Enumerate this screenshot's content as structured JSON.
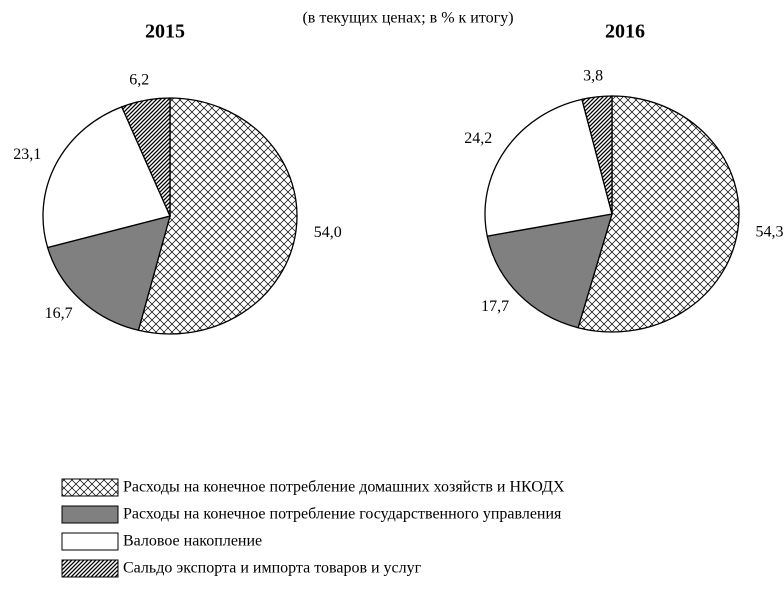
{
  "chart_data": [
    {
      "type": "pie",
      "title": "2015",
      "values": [
        54.0,
        16.7,
        23.1,
        6.2
      ],
      "value_labels": [
        "54,0",
        "16,7",
        "23,1",
        "6,2"
      ]
    },
    {
      "type": "pie",
      "title": "2016",
      "values": [
        54.3,
        17.7,
        24.2,
        3.8
      ],
      "value_labels": [
        "54,3",
        "17,7",
        "24,2",
        "3,8"
      ]
    }
  ],
  "subtitle": "(в текущих ценах; в % к итогу)",
  "legend": {
    "categories": [
      "Расходы на конечное потребление домашних хозяйств и НКОДХ",
      "Расходы на конечное потребление государственного управления",
      "Валовое накопление",
      "Сальдо экспорта и импорта товаров и услуг"
    ],
    "fills": [
      "crosshatch",
      "#808080",
      "#ffffff",
      "diagonal"
    ]
  }
}
